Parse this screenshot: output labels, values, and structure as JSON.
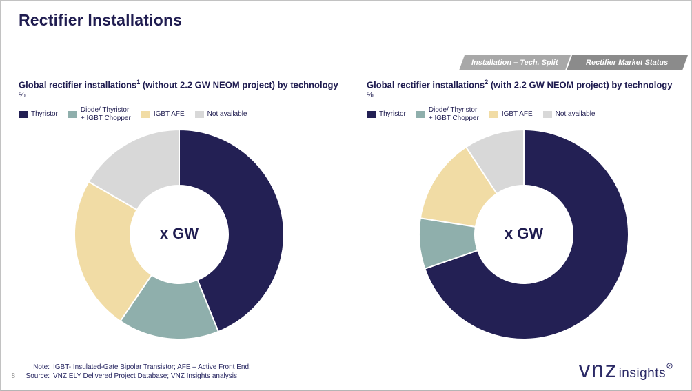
{
  "slide": {
    "title": "Rectifier Installations",
    "page_number": "8",
    "tabs": [
      {
        "label": "Installation – Tech. Split"
      },
      {
        "label": "Rectifier Market Status"
      }
    ],
    "footer": {
      "note_label": "Note:",
      "note_text": "IGBT- Insulated-Gate Bipolar Transistor; AFE – Active Front End;",
      "source_label": "Source:",
      "source_text": "VNZ ELY Delivered Project Database; VNZ Insights analysis"
    },
    "logo": {
      "brand": "vnz",
      "suffix": "insights"
    }
  },
  "colors": {
    "accent_navy": "#1f1c50",
    "tab_inactive": "#a8a8a8",
    "tab_active": "#8b8b8b",
    "rule": "#4a4a4a",
    "slice_thyristor": "#232054",
    "slice_diode_chopper": "#8fafac",
    "slice_igbt_afe": "#f1dca5",
    "slice_not_available": "#d8d8d8"
  },
  "chart_data": [
    {
      "type": "pie",
      "donut": true,
      "title_before_sup": "Global rectifier installations",
      "title_sup": "1",
      "title_after_sup": " (without 2.2 GW NEOM project) by technology",
      "unit_label": "%",
      "center_label": "x GW",
      "categories": [
        "Thyristor",
        "Diode/ Thyristor + IGBT Chopper",
        "IGBT AFE",
        "Not available"
      ],
      "legend": [
        "Thyristor",
        "Diode/ Thyristor\n+ IGBT Chopper",
        "IGBT AFE",
        "Not available"
      ],
      "values": [
        43.9,
        15.6,
        23.9,
        16.6
      ],
      "values_note": "percent, estimated from slice angles; chart shows only center placeholder",
      "colors": [
        "#232054",
        "#8fafac",
        "#f1dca5",
        "#d8d8d8"
      ],
      "start_angle_deg": 0,
      "direction": "clockwise",
      "legend_position": "top"
    },
    {
      "type": "pie",
      "donut": true,
      "title_before_sup": "Global rectifier installations",
      "title_sup": "2",
      "title_after_sup": " (with 2.2 GW NEOM project) by technology",
      "unit_label": "%",
      "center_label": "x GW",
      "categories": [
        "Thyristor",
        "Diode/ Thyristor + IGBT Chopper",
        "IGBT AFE",
        "Not available"
      ],
      "legend": [
        "Thyristor",
        "Diode/ Thyristor\n+ IGBT Chopper",
        "IGBT AFE",
        "Not available"
      ],
      "values": [
        69.7,
        7.8,
        13.2,
        9.3
      ],
      "values_note": "percent, estimated from slice angles; chart shows only center placeholder",
      "colors": [
        "#232054",
        "#8fafac",
        "#f1dca5",
        "#d8d8d8"
      ],
      "start_angle_deg": 0,
      "direction": "clockwise",
      "legend_position": "top"
    }
  ]
}
